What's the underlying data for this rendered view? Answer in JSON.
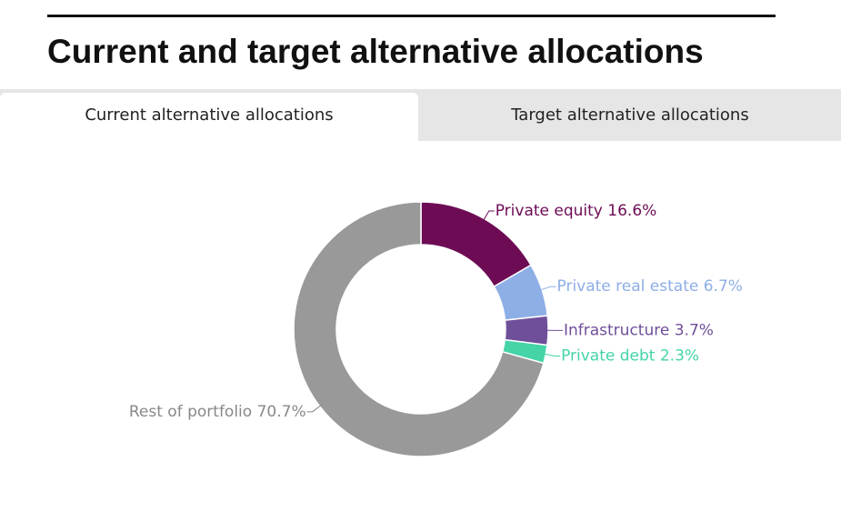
{
  "title": "Current and target alternative allocations",
  "tabs": [
    "Current alternative allocations",
    "Target alternative allocations"
  ],
  "chart_data": {
    "type": "pie",
    "categories": [
      "Private equity",
      "Private real estate",
      "Infrastructure",
      "Private debt",
      "Rest of portfolio"
    ],
    "values": [
      16.6,
      6.7,
      3.7,
      2.3,
      70.7
    ],
    "value_labels": [
      "16.6%",
      "6.7%",
      "3.7%",
      "2.3%",
      "70.7%"
    ],
    "colors": [
      "#6d0c55",
      "#8eaee6",
      "#6f4f99",
      "#44d4a8",
      "#999999"
    ]
  }
}
